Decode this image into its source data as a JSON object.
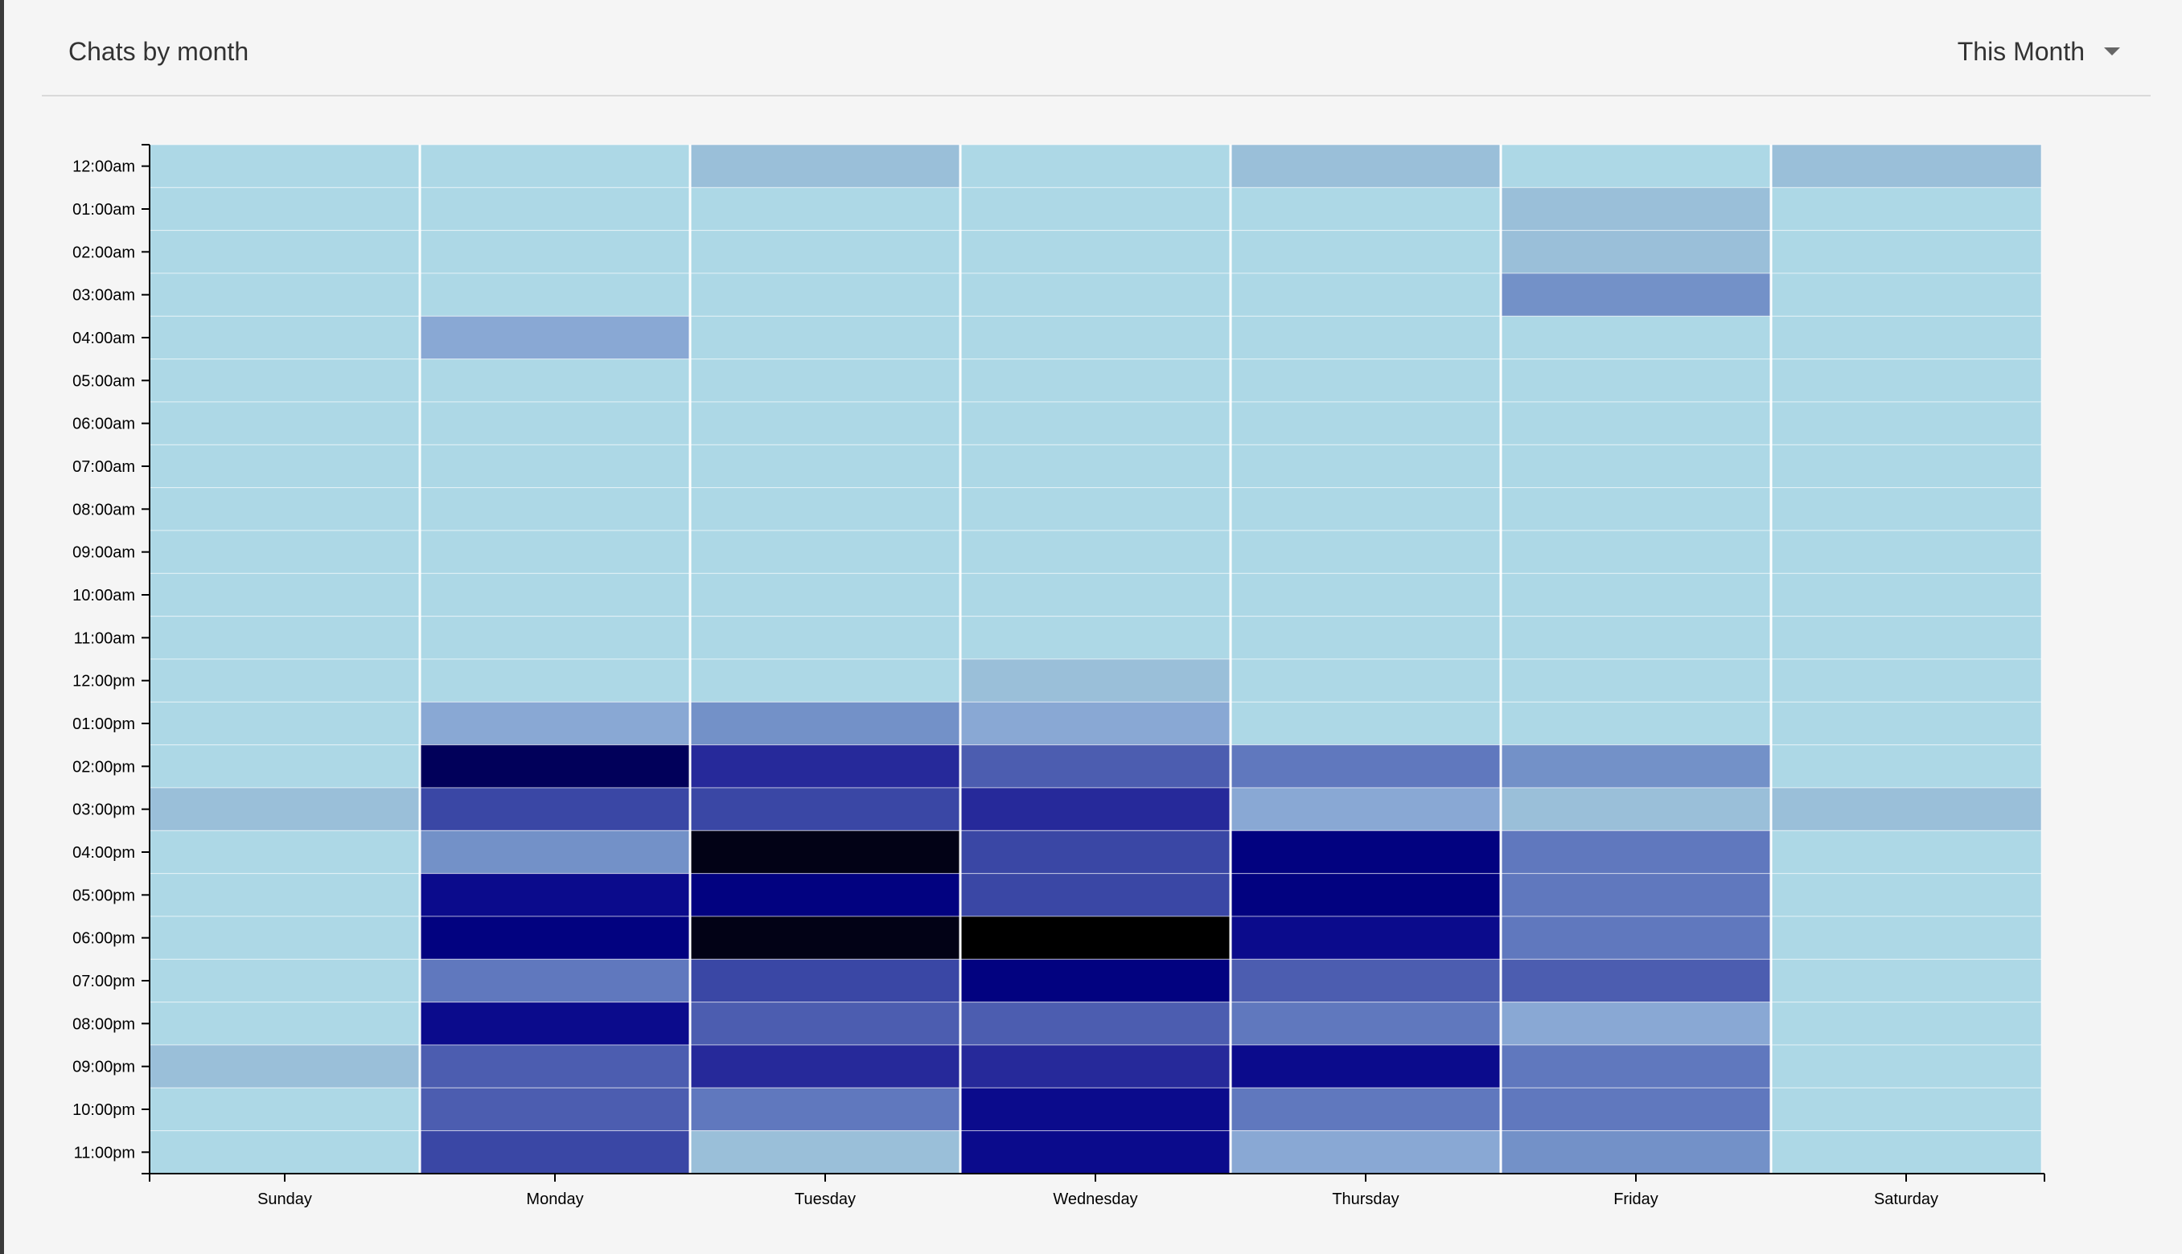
{
  "header": {
    "title": "Chats by month",
    "range_selected": "This Month"
  },
  "chart_data": {
    "type": "heatmap",
    "title": "Chats by month",
    "x_categories": [
      "Sunday",
      "Monday",
      "Tuesday",
      "Wednesday",
      "Thursday",
      "Friday",
      "Saturday"
    ],
    "y_categories": [
      "12:00am",
      "01:00am",
      "02:00am",
      "03:00am",
      "04:00am",
      "05:00am",
      "06:00am",
      "07:00am",
      "08:00am",
      "09:00am",
      "10:00am",
      "11:00am",
      "12:00pm",
      "01:00pm",
      "02:00pm",
      "03:00pm",
      "04:00pm",
      "05:00pm",
      "06:00pm",
      "07:00pm",
      "08:00pm",
      "09:00pm",
      "10:00pm",
      "11:00pm"
    ],
    "values": [
      [
        0,
        0,
        1,
        0,
        1,
        0,
        1
      ],
      [
        0,
        0,
        0,
        0,
        0,
        1,
        0
      ],
      [
        0,
        0,
        0,
        0,
        0,
        1,
        0
      ],
      [
        0,
        0,
        0,
        0,
        0,
        3,
        0
      ],
      [
        0,
        2,
        0,
        0,
        0,
        0,
        0
      ],
      [
        0,
        0,
        0,
        0,
        0,
        0,
        0
      ],
      [
        0,
        0,
        0,
        0,
        0,
        0,
        0
      ],
      [
        0,
        0,
        0,
        0,
        0,
        0,
        0
      ],
      [
        0,
        0,
        0,
        0,
        0,
        0,
        0
      ],
      [
        0,
        0,
        0,
        0,
        0,
        0,
        0
      ],
      [
        0,
        0,
        0,
        0,
        0,
        0,
        0
      ],
      [
        0,
        0,
        0,
        0,
        0,
        0,
        0
      ],
      [
        0,
        0,
        0,
        1,
        0,
        0,
        0
      ],
      [
        0,
        2,
        3,
        2,
        0,
        0,
        0
      ],
      [
        0,
        10,
        7,
        5,
        4,
        3,
        0
      ],
      [
        1,
        6,
        6,
        7,
        2,
        1,
        1
      ],
      [
        0,
        3,
        11,
        6,
        9,
        4,
        0
      ],
      [
        0,
        8,
        9,
        6,
        9,
        4,
        0
      ],
      [
        0,
        9,
        11,
        12,
        8,
        4,
        0
      ],
      [
        0,
        4,
        6,
        9,
        5,
        5,
        0
      ],
      [
        0,
        8,
        5,
        5,
        4,
        2,
        0
      ],
      [
        1,
        5,
        7,
        7,
        8,
        4,
        0
      ],
      [
        0,
        5,
        4,
        8,
        4,
        4,
        0
      ],
      [
        0,
        6,
        1,
        8,
        2,
        3,
        0
      ]
    ],
    "min": 0,
    "max": 12,
    "color_scale": [
      "#add8e6",
      "#9abfd9",
      "#89a8d4",
      "#7391c8",
      "#6078be",
      "#4c5db0",
      "#3a47a5",
      "#26299a",
      "#0b0b8c",
      "#020280",
      "#01005a",
      "#020216",
      "#000000"
    ]
  }
}
